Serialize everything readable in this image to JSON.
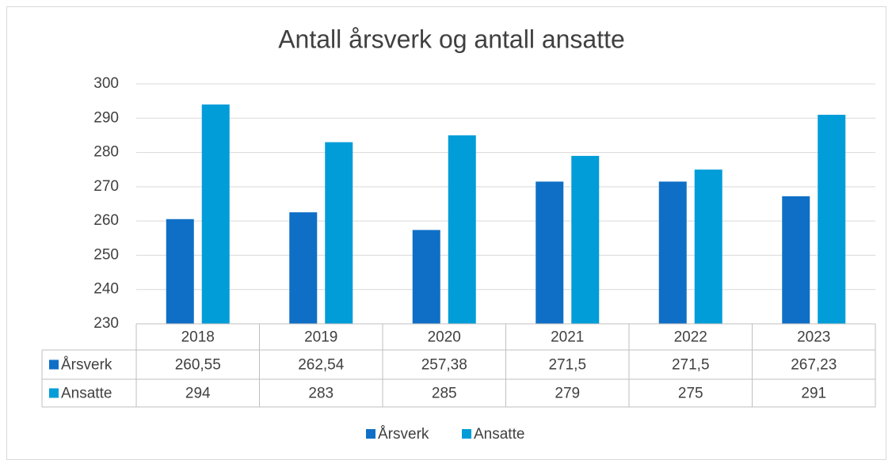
{
  "chart_data": {
    "type": "bar",
    "title": "Antall årsverk og antall ansatte",
    "categories": [
      "2018",
      "2019",
      "2020",
      "2021",
      "2022",
      "2023"
    ],
    "series": [
      {
        "name": "Årsverk",
        "color": "#0f6fc6",
        "values": [
          260.55,
          262.54,
          257.38,
          271.5,
          271.5,
          267.23
        ],
        "value_labels": [
          "260,55",
          "262,54",
          "257,38",
          "271,5",
          "271,5",
          "267,23"
        ]
      },
      {
        "name": "Ansatte",
        "color": "#009dd9",
        "values": [
          294,
          283,
          285,
          279,
          275,
          291
        ]
      }
    ],
    "ylim": [
      230,
      300
    ],
    "yticks": [
      230,
      240,
      250,
      260,
      270,
      280,
      290,
      300
    ],
    "grid": true,
    "legend": "bottom"
  }
}
